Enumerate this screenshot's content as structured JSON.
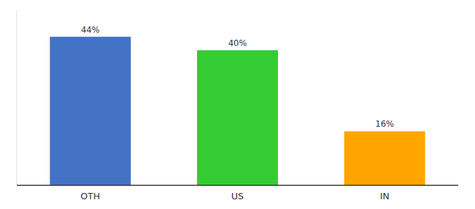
{
  "chart_data": {
    "type": "bar",
    "categories": [
      "OTH",
      "US",
      "IN"
    ],
    "values": [
      44,
      40,
      16
    ],
    "value_labels": [
      "44%",
      "40%",
      "16%"
    ],
    "colors": [
      "#4472C4",
      "#33CC33",
      "#FFA500"
    ],
    "ylim": [
      0,
      52
    ],
    "data_labels": true,
    "tick_labels": "x"
  }
}
